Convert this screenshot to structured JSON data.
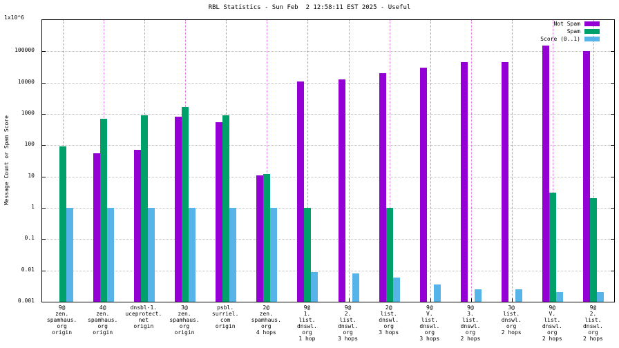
{
  "title": "RBL Statistics - Sun Feb  2 12:58:11 EST 2025 - Useful",
  "ylabel": "Message Count or Spam Score",
  "legend": [
    {
      "label": "Not Spam",
      "color": "#9400d3"
    },
    {
      "label": "Spam",
      "color": "#00a06a"
    },
    {
      "label": "Score (0..1)",
      "color": "#56b4e9"
    }
  ],
  "chart_data": {
    "type": "bar",
    "scale": "log",
    "title": "RBL Statistics - Sun Feb  2 12:58:11 EST 2025 - Useful",
    "xlabel": "",
    "ylabel": "Message Count or Spam Score",
    "ylim": [
      0.001,
      1000000
    ],
    "ytop_label": "1x10^6",
    "ytick_labels": [
      "100000",
      "10000",
      "1000",
      "100",
      "10",
      "1",
      "0.1",
      "0.01",
      "0.001"
    ],
    "grid": true,
    "legend_position": "top-right",
    "categories": [
      [
        "9@",
        "zen.",
        "spamhaus.",
        "org",
        "origin"
      ],
      [
        "4@",
        "zen.",
        "spamhaus.",
        "org",
        "origin"
      ],
      [
        "dnsbl-1.",
        "uceprotect.",
        "net",
        "origin"
      ],
      [
        "3@",
        "zen.",
        "spamhaus.",
        "org",
        "origin"
      ],
      [
        "psbl.",
        "surriel.",
        "com",
        "origin"
      ],
      [
        "2@",
        "zen.",
        "spamhaus.",
        "org",
        "4 hops"
      ],
      [
        "9@",
        "1.",
        "list.",
        "dnswl.",
        "org",
        "1 hop"
      ],
      [
        "9@",
        "2.",
        "list.",
        "dnswl.",
        "org",
        "3 hops"
      ],
      [
        "2@",
        "list.",
        "dnswl.",
        "org",
        "3 hops"
      ],
      [
        "9@",
        "V.",
        "list.",
        "dnswl.",
        "org",
        "3 hops"
      ],
      [
        "9@",
        "3.",
        "list.",
        "dnswl.",
        "org",
        "2 hops"
      ],
      [
        "3@",
        "list.",
        "dnswl.",
        "org",
        "2 hops"
      ],
      [
        "9@",
        "V.",
        "list.",
        "dnswl.",
        "org",
        "2 hops"
      ],
      [
        "9@",
        "2.",
        "list.",
        "dnswl.",
        "org",
        "2 hops"
      ]
    ],
    "series": [
      {
        "name": "Not Spam",
        "color": "#9400d3",
        "values": [
          0,
          55,
          70,
          800,
          550,
          11,
          11000,
          13000,
          20000,
          30000,
          45000,
          45000,
          150000,
          100000
        ]
      },
      {
        "name": "Spam",
        "color": "#00a06a",
        "values": [
          90,
          700,
          900,
          1700,
          900,
          12,
          1,
          0,
          1,
          0,
          0,
          0,
          3,
          2
        ]
      },
      {
        "name": "Score (0..1)",
        "color": "#56b4e9",
        "values": [
          1,
          1,
          1,
          1,
          1,
          1,
          0.009,
          0.008,
          0.006,
          0.0035,
          0.0025,
          0.0025,
          0.002,
          0.002
        ]
      }
    ]
  }
}
